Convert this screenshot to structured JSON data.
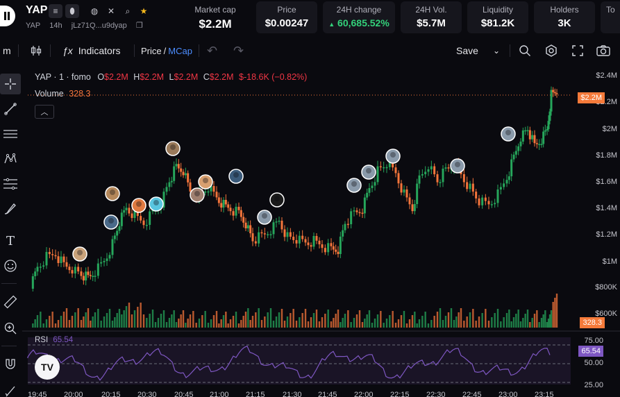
{
  "header": {
    "token_symbol": "YAP",
    "sub_symbol": "YAP",
    "age": "14h",
    "address": "jLz71Q...u9dyap",
    "stats": [
      {
        "label": "Market cap",
        "value": "$2.2M"
      },
      {
        "label": "Price",
        "value": "$0.00247"
      },
      {
        "label": "24H change",
        "value": "60,685.52%",
        "arrow": "▲"
      },
      {
        "label": "24H Vol.",
        "value": "$5.7M"
      },
      {
        "label": "Liquidity",
        "value": "$81.2K"
      },
      {
        "label": "Holders",
        "value": "3K"
      },
      {
        "label": "To",
        "value": ""
      }
    ]
  },
  "toolbar": {
    "interval": "m",
    "indicators_label": "Indicators",
    "price_label": "Price",
    "slash": "/",
    "mcap_label": "MCap",
    "save_label": "Save"
  },
  "legend": {
    "title": "YAP · 1 · fomo",
    "o_label": "O",
    "o_val": "$2.2M",
    "h_label": "H",
    "h_val": "$2.2M",
    "l_label": "L",
    "l_val": "$2.2M",
    "c_label": "C",
    "c_val": "$2.2M",
    "change": "$-18.6K (−0.82%)",
    "volume_label": "Volume",
    "volume_val": "328.3",
    "rsi_label": "RSI",
    "rsi_val": "65.54"
  },
  "price_axis": [
    "$2.4M",
    "$2.2M",
    "$2M",
    "$1.8M",
    "$1.6M",
    "$1.4M",
    "$1.2M",
    "$1M",
    "$800K",
    "$600K"
  ],
  "current_price_tag": "$2.2M",
  "volume_tag": "328.3",
  "rsi_axis": [
    "75.00",
    "50.00",
    "25.00"
  ],
  "rsi_tag": "65.54",
  "time_axis": [
    "19:45",
    "20:00",
    "20:15",
    "20:30",
    "20:45",
    "21:00",
    "21:15",
    "21:30",
    "21:45",
    "22:00",
    "22:15",
    "22:30",
    "22:45",
    "23:00",
    "23:15"
  ],
  "colors": {
    "up": "#26a65b",
    "down": "#f5753b",
    "rsi": "#7e57c2",
    "accent": "#2962ff",
    "mcap": "#4c8dff",
    "bg": "#0a0a0f"
  },
  "chart_data": {
    "type": "candlestick",
    "title": "YAP · 1 · fomo",
    "x_range": [
      "19:45",
      "23:15"
    ],
    "price_range": [
      "$600K",
      "$2.4M"
    ],
    "ohlc_last": {
      "open": "$2.2M",
      "high": "$2.2M",
      "low": "$2.2M",
      "close": "$2.2M"
    },
    "series": [
      {
        "name": "Volume",
        "last": "328.3"
      },
      {
        "name": "RSI",
        "last": "65.54",
        "levels": [
          75,
          50,
          25
        ]
      }
    ]
  }
}
